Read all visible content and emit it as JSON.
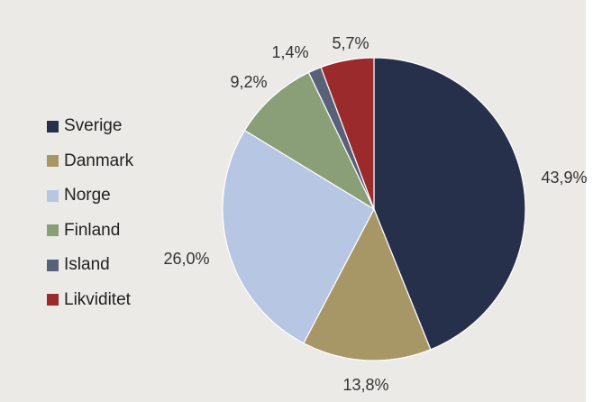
{
  "chart_data": {
    "type": "pie",
    "title": "",
    "categories": [
      "Sverige",
      "Danmark",
      "Norge",
      "Finland",
      "Island",
      "Likviditet"
    ],
    "values": [
      43.9,
      13.8,
      26.0,
      9.2,
      1.4,
      5.7
    ],
    "labels": [
      "43,9%",
      "13,8%",
      "26,0%",
      "9,2%",
      "1,4%",
      "5,7%"
    ],
    "colors": [
      "#27304a",
      "#a89766",
      "#b7c6e3",
      "#8a9e77",
      "#586178",
      "#9a2a2c"
    ],
    "start": "12 o'clock",
    "direction": "clockwise",
    "legend": "left"
  }
}
